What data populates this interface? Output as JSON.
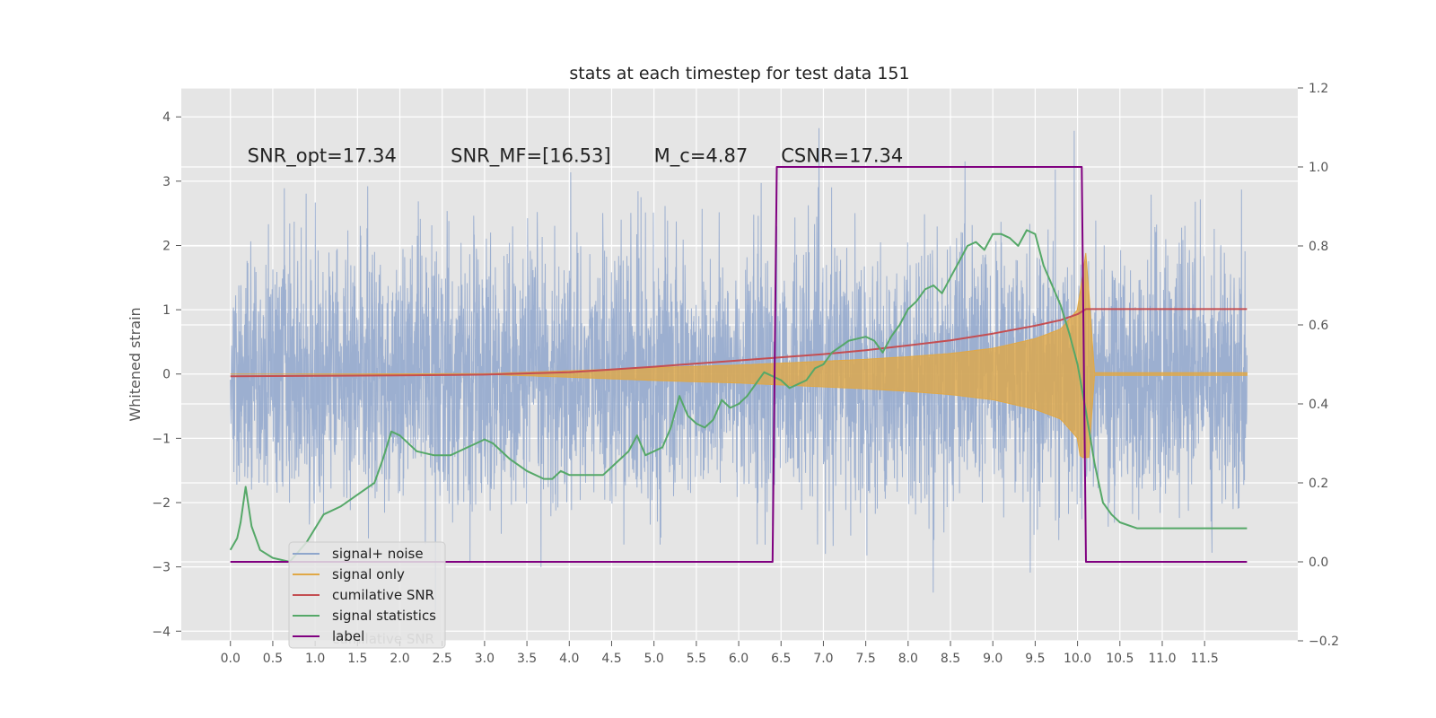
{
  "chart_data": {
    "type": "line",
    "title": "stats at each timestep for test data 151",
    "ylabel": "Whitened strain",
    "xlim": [
      -0.58,
      12.6
    ],
    "ylim": [
      -4.15,
      4.45
    ],
    "y2lim": [
      -0.2,
      1.2
    ],
    "xticks": [
      0.0,
      0.5,
      1.0,
      1.5,
      2.0,
      2.5,
      3.0,
      3.5,
      4.0,
      4.5,
      5.0,
      5.5,
      6.0,
      6.5,
      7.0,
      7.5,
      8.0,
      8.5,
      9.0,
      9.5,
      10.0,
      10.5,
      11.0,
      11.5
    ],
    "xtick_labels": [
      "0.0",
      "0.5",
      "1.0",
      "1.5",
      "2.0",
      "2.5",
      "3.0",
      "3.5",
      "4.0",
      "4.5",
      "5.0",
      "5.5",
      "6.0",
      "6.5",
      "7.0",
      "7.5",
      "8.0",
      "8.5",
      "9.0",
      "9.5",
      "10.0",
      "10.5",
      "11.0",
      "11.5"
    ],
    "yticks": [
      -4,
      -3,
      -2,
      -1,
      0,
      1,
      2,
      3,
      4
    ],
    "ytick_labels": [
      "−4",
      "−3",
      "−2",
      "−1",
      "0",
      "1",
      "2",
      "3",
      "4"
    ],
    "y2ticks": [
      -0.2,
      0.0,
      0.2,
      0.4,
      0.6,
      0.8,
      1.0,
      1.2
    ],
    "y2tick_labels": [
      "−0.2",
      "0.0",
      "0.2",
      "0.4",
      "0.6",
      "0.8",
      "1.0",
      "1.2"
    ],
    "grid": true,
    "legend_position": "lower-left",
    "annotations": [
      {
        "text": "SNR_opt=17.34",
        "x": 0.2,
        "y": 3.3
      },
      {
        "text": "SNR_MF=[16.53]",
        "x": 2.6,
        "y": 3.3
      },
      {
        "text": "M_c=4.87",
        "x": 5.0,
        "y": 3.3
      },
      {
        "text": "CSNR=17.34",
        "x": 6.5,
        "y": 3.3
      }
    ],
    "series": [
      {
        "name": "signal+ noise",
        "color": "#8fa6cc",
        "axis": "left",
        "x_range": [
          0.0,
          12.0
        ],
        "noise_sigma": 1.0,
        "peak_envelope": 2.6
      },
      {
        "name": "signal only",
        "color": "#e0a846",
        "axis": "left",
        "envelope_x": [
          0.0,
          3.0,
          4.0,
          5.0,
          6.0,
          6.5,
          7.0,
          7.5,
          8.0,
          8.5,
          9.0,
          9.5,
          9.8,
          10.0,
          10.1,
          10.2
        ],
        "envelope_y": [
          0.0,
          0.005,
          0.05,
          0.1,
          0.14,
          0.17,
          0.2,
          0.23,
          0.27,
          0.32,
          0.4,
          0.55,
          0.7,
          1.0,
          1.9,
          0.02
        ]
      },
      {
        "name": "cumilative SNR",
        "color": "#c44e52",
        "axis": "right",
        "x": [
          0.0,
          1.0,
          2.0,
          3.0,
          4.0,
          5.0,
          6.0,
          6.5,
          7.0,
          7.5,
          8.0,
          8.5,
          9.0,
          9.5,
          9.8,
          10.0,
          10.1,
          12.0
        ],
        "y": [
          0.47,
          0.471,
          0.472,
          0.474,
          0.48,
          0.494,
          0.51,
          0.518,
          0.526,
          0.536,
          0.548,
          0.561,
          0.578,
          0.598,
          0.612,
          0.627,
          0.64,
          0.64
        ]
      },
      {
        "name": "signal statistics",
        "color": "#55a868",
        "axis": "right",
        "x": [
          0.0,
          0.08,
          0.12,
          0.18,
          0.25,
          0.35,
          0.5,
          0.7,
          0.9,
          1.1,
          1.3,
          1.5,
          1.7,
          1.8,
          1.9,
          2.0,
          2.2,
          2.4,
          2.6,
          2.8,
          2.9,
          3.0,
          3.1,
          3.3,
          3.5,
          3.7,
          3.8,
          3.9,
          4.0,
          4.2,
          4.4,
          4.5,
          4.7,
          4.8,
          4.9,
          5.0,
          5.1,
          5.2,
          5.3,
          5.4,
          5.5,
          5.6,
          5.7,
          5.8,
          5.9,
          6.0,
          6.1,
          6.2,
          6.3,
          6.4,
          6.5,
          6.6,
          6.8,
          6.9,
          7.0,
          7.1,
          7.3,
          7.5,
          7.6,
          7.7,
          7.8,
          7.9,
          8.0,
          8.1,
          8.2,
          8.3,
          8.4,
          8.5,
          8.6,
          8.7,
          8.8,
          8.9,
          9.0,
          9.1,
          9.2,
          9.3,
          9.4,
          9.5,
          9.6,
          9.7,
          9.8,
          9.9,
          10.0,
          10.1,
          10.2,
          10.3,
          10.4,
          10.5,
          10.7,
          11.0,
          11.5,
          11.9,
          12.0
        ],
        "y": [
          0.03,
          0.06,
          0.1,
          0.19,
          0.09,
          0.03,
          0.01,
          0.0,
          0.05,
          0.12,
          0.14,
          0.17,
          0.2,
          0.26,
          0.33,
          0.32,
          0.28,
          0.27,
          0.27,
          0.29,
          0.3,
          0.31,
          0.3,
          0.26,
          0.23,
          0.21,
          0.21,
          0.23,
          0.22,
          0.22,
          0.22,
          0.24,
          0.28,
          0.32,
          0.27,
          0.28,
          0.29,
          0.34,
          0.42,
          0.37,
          0.35,
          0.34,
          0.36,
          0.41,
          0.39,
          0.4,
          0.42,
          0.45,
          0.48,
          0.47,
          0.46,
          0.44,
          0.46,
          0.49,
          0.5,
          0.53,
          0.56,
          0.57,
          0.56,
          0.53,
          0.57,
          0.6,
          0.64,
          0.66,
          0.69,
          0.7,
          0.68,
          0.72,
          0.76,
          0.8,
          0.81,
          0.79,
          0.83,
          0.83,
          0.82,
          0.8,
          0.84,
          0.83,
          0.75,
          0.7,
          0.65,
          0.58,
          0.5,
          0.38,
          0.25,
          0.15,
          0.12,
          0.1,
          0.085,
          0.085,
          0.085,
          0.085,
          0.085
        ]
      },
      {
        "name": "label",
        "color": "#800080",
        "axis": "right",
        "x": [
          0.0,
          6.4,
          6.45,
          10.05,
          10.1,
          12.0
        ],
        "y": [
          0.0,
          0.0,
          1.0,
          1.0,
          0.0,
          0.0
        ]
      }
    ],
    "legend_overlap_text": "cumilative SNR"
  }
}
